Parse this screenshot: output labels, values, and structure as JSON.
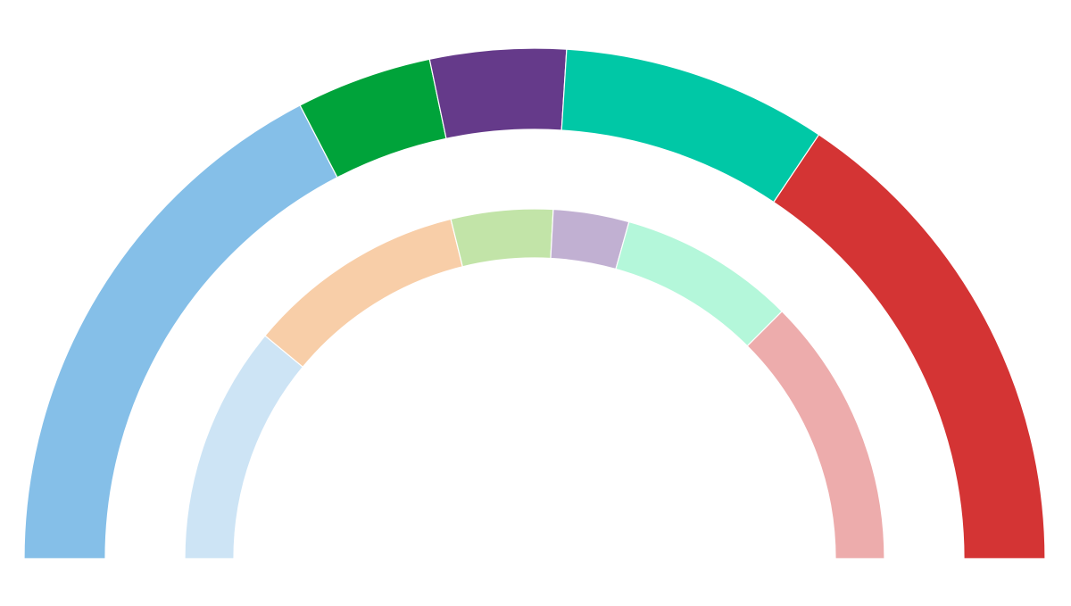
{
  "chart_data": {
    "type": "pie",
    "variant": "semicircle-nested-donut",
    "rings": [
      {
        "name": "",
        "segments": [
          {
            "value": 34.8,
            "color": "#85bfe8"
          },
          {
            "value": 8.6,
            "color": "#00a33a"
          },
          {
            "value": 8.6,
            "color": "#653a8a"
          },
          {
            "value": 16.8,
            "color": "#00c8a6"
          },
          {
            "value": 31.2,
            "color": "#d43434"
          }
        ]
      },
      {
        "name": "",
        "segments": [
          {
            "value": 22.0,
            "color": "#cde4f5"
          },
          {
            "value": 20.3,
            "color": "#f8cea8"
          },
          {
            "value": 9.4,
            "color": "#c2e4a8"
          },
          {
            "value": 7.0,
            "color": "#c1b0d2"
          },
          {
            "value": 16.3,
            "color": "#b4f7da"
          },
          {
            "value": 25.0,
            "color": "#edacac"
          }
        ]
      }
    ]
  }
}
